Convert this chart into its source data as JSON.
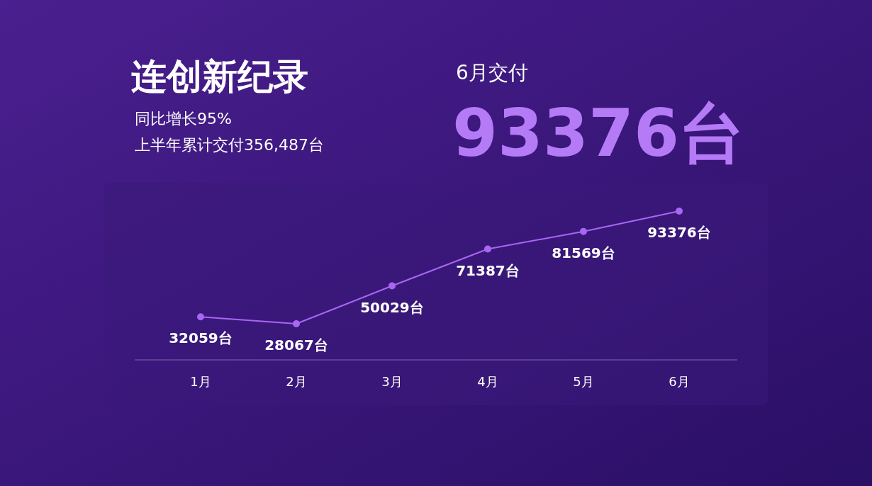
{
  "chart_data": {
    "type": "line",
    "title": "连创新纪录",
    "subtitle": "同比增长95%",
    "annotations": [
      "上半年累计交付356,487台",
      "6月交付",
      "93376台"
    ],
    "categories": [
      "1月",
      "2月",
      "3月",
      "4月",
      "5月",
      "6月"
    ],
    "values": [
      32059,
      28067,
      50029,
      71387,
      81569,
      93376
    ],
    "value_labels": [
      "32059台",
      "28067台",
      "50029台",
      "71387台",
      "81569台",
      "93376台"
    ],
    "color": "#a866f2",
    "marker": "circle"
  }
}
